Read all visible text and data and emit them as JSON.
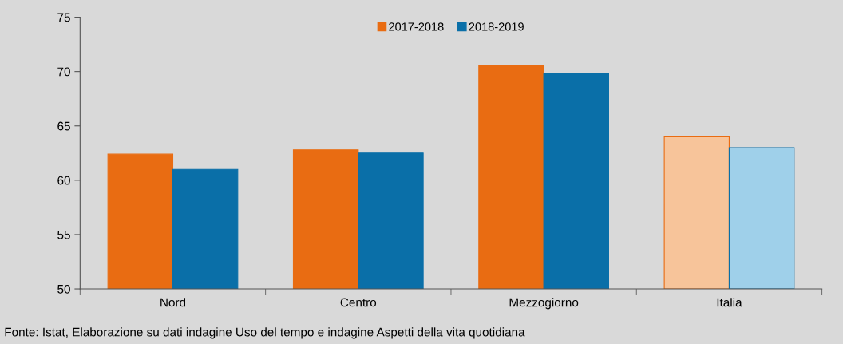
{
  "chart_data": {
    "type": "bar",
    "categories": [
      "Nord",
      "Centro",
      "Mezzogiorno",
      "Italia"
    ],
    "series": [
      {
        "name": "2017-2018",
        "color": "#e96c12",
        "colors": [
          "#e96c12",
          "#e96c12",
          "#e96c12",
          "#f7c49a"
        ],
        "values": [
          62.4,
          62.8,
          70.6,
          64.0
        ]
      },
      {
        "name": "2018-2019",
        "color": "#0a6fa8",
        "colors": [
          "#0a6fa8",
          "#0a6fa8",
          "#0a6fa8",
          "#9fd0ea"
        ],
        "values": [
          61.0,
          62.5,
          69.8,
          63.0
        ]
      }
    ],
    "ylim": [
      50,
      75
    ],
    "yticks": [
      50,
      55,
      60,
      65,
      70,
      75
    ],
    "grid": false,
    "legend": "top",
    "annotations": [
      "Fonte: Istat, Elaborazione su dati indagine Uso del tempo e indagine Aspetti della vita quotidiana"
    ]
  }
}
